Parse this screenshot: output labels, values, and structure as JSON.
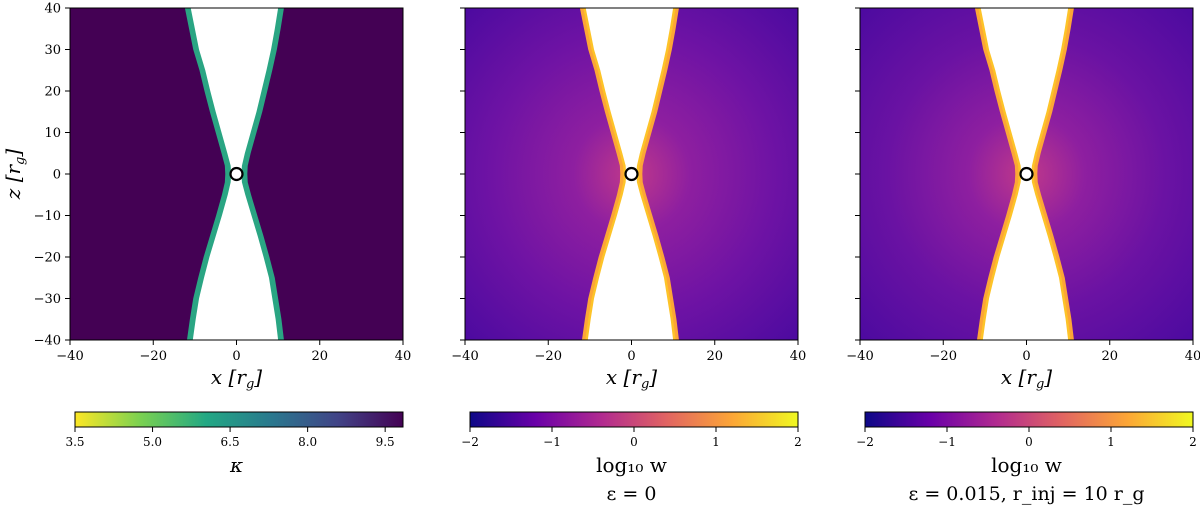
{
  "figure": {
    "panels": [
      {
        "id": "kappa",
        "show_ylabel": true,
        "xlabel": "x [r_g]",
        "ylabel": "z [r_g]",
        "xticks": [
          "−40",
          "−20",
          "0",
          "20",
          "40"
        ],
        "yticks": [
          "40",
          "30",
          "20",
          "10",
          "0",
          "−10",
          "−20",
          "−30",
          "−40"
        ],
        "colormap": "viridis-reversed",
        "background": "#440154",
        "funnel_edge": "#2aa583",
        "colorbar": {
          "ticks": [
            "3.5",
            "5.0",
            "6.5",
            "8.0",
            "9.5"
          ],
          "label": "κ",
          "caption": "",
          "stops": [
            "#fde725",
            "#7ad151",
            "#22a884",
            "#2a788e",
            "#414487",
            "#440154"
          ]
        }
      },
      {
        "id": "w_eps0",
        "show_ylabel": false,
        "xlabel": "x [r_g]",
        "xticks": [
          "−40",
          "−20",
          "0",
          "20",
          "40"
        ],
        "colormap": "plasma",
        "background": "#6f13a4",
        "funnel_edge": "#fca636",
        "colorbar": {
          "ticks": [
            "−2",
            "−1",
            "0",
            "1",
            "2"
          ],
          "label": "log₁₀ w",
          "caption": "ε = 0",
          "stops": [
            "#0d0887",
            "#6a00a8",
            "#b12a90",
            "#e16462",
            "#fca636",
            "#f0f921"
          ]
        }
      },
      {
        "id": "w_eps015",
        "show_ylabel": false,
        "xlabel": "x [r_g]",
        "xticks": [
          "−40",
          "−20",
          "0",
          "20",
          "40"
        ],
        "colormap": "plasma",
        "background": "#6a12a3",
        "funnel_edge": "#fca636",
        "colorbar": {
          "ticks": [
            "−2",
            "−1",
            "0",
            "1",
            "2"
          ],
          "label": "log₁₀ w",
          "caption": "ε = 0.015, r_inj = 10 r_g",
          "stops": [
            "#0d0887",
            "#6a00a8",
            "#b12a90",
            "#e16462",
            "#fca636",
            "#f0f921"
          ]
        }
      }
    ]
  }
}
